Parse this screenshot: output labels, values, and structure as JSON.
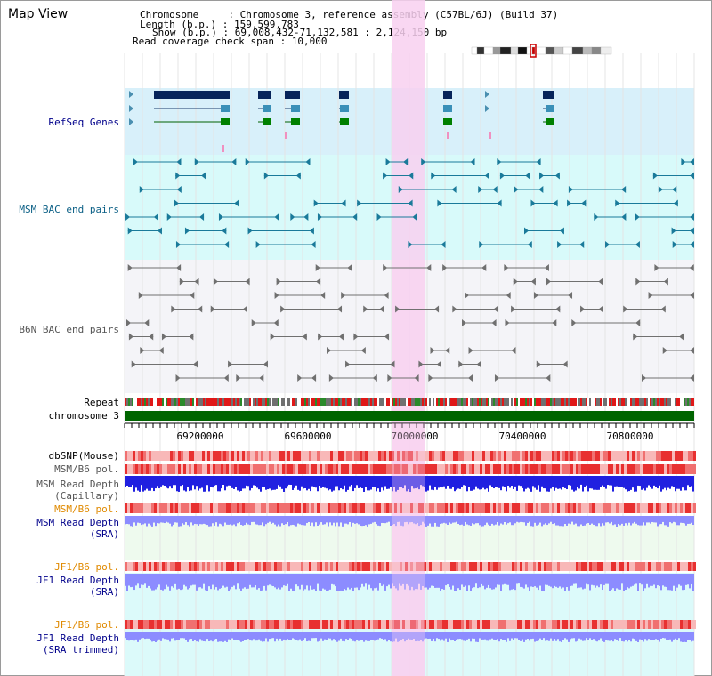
{
  "title": "Map View",
  "info": {
    "chromosome_key": "Chromosome     : ",
    "chromosome_val": "Chromosome 3, reference assembly (C57BL/6J) (Build 37)",
    "length_key": "Length (b.p.) : ",
    "length_val": "159,599,783",
    "show_key": "Show (b.p.) : ",
    "show_val": "69,008,432-71,132,581 : 2,124,150 bp",
    "coverage_key": "Read coverage check span : ",
    "coverage_val": "10,000"
  },
  "tracks": {
    "refseq": "RefSeq Genes",
    "msm_bac": "MSM BAC end pairs",
    "b6n_bac": "B6N BAC end pairs",
    "repeat": "Repeat",
    "chromosome": "chromosome 3",
    "dbsnp": "dbSNP(Mouse)",
    "msm_b6_pol": "MSM/B6 pol.",
    "msm_depth_cap": "MSM Read Depth",
    "msm_depth_cap_sub": "(Capillary)",
    "msm_b6_pol2": "MSM/B6 pol.",
    "msm_depth_sra": "MSM Read Depth",
    "msm_depth_sra_sub": "(SRA)",
    "jf1_pol": "JF1/B6 pol.",
    "jf1_depth": "JF1 Read Depth",
    "jf1_depth_sub": "(SRA)",
    "jf1_pol2": "JF1/B6 pol.",
    "jf1_depth_trim": "JF1 Read Depth",
    "jf1_depth_trim_sub": "(SRA trimmed)"
  },
  "axis": {
    "ticks": [
      "69200000",
      "69600000",
      "70000000",
      "70400000",
      "70800000"
    ]
  },
  "colors": {
    "highlight": "#f8d0f0",
    "refseq_bg": "#d8f0fa",
    "msm_bg": "#d8fafa",
    "b6n_bg": "#f4f4f8",
    "chromosome": "#006400",
    "depth_cap": "#2020e0",
    "depth_sra": "#8c8cff",
    "pol": "#f06060"
  }
}
